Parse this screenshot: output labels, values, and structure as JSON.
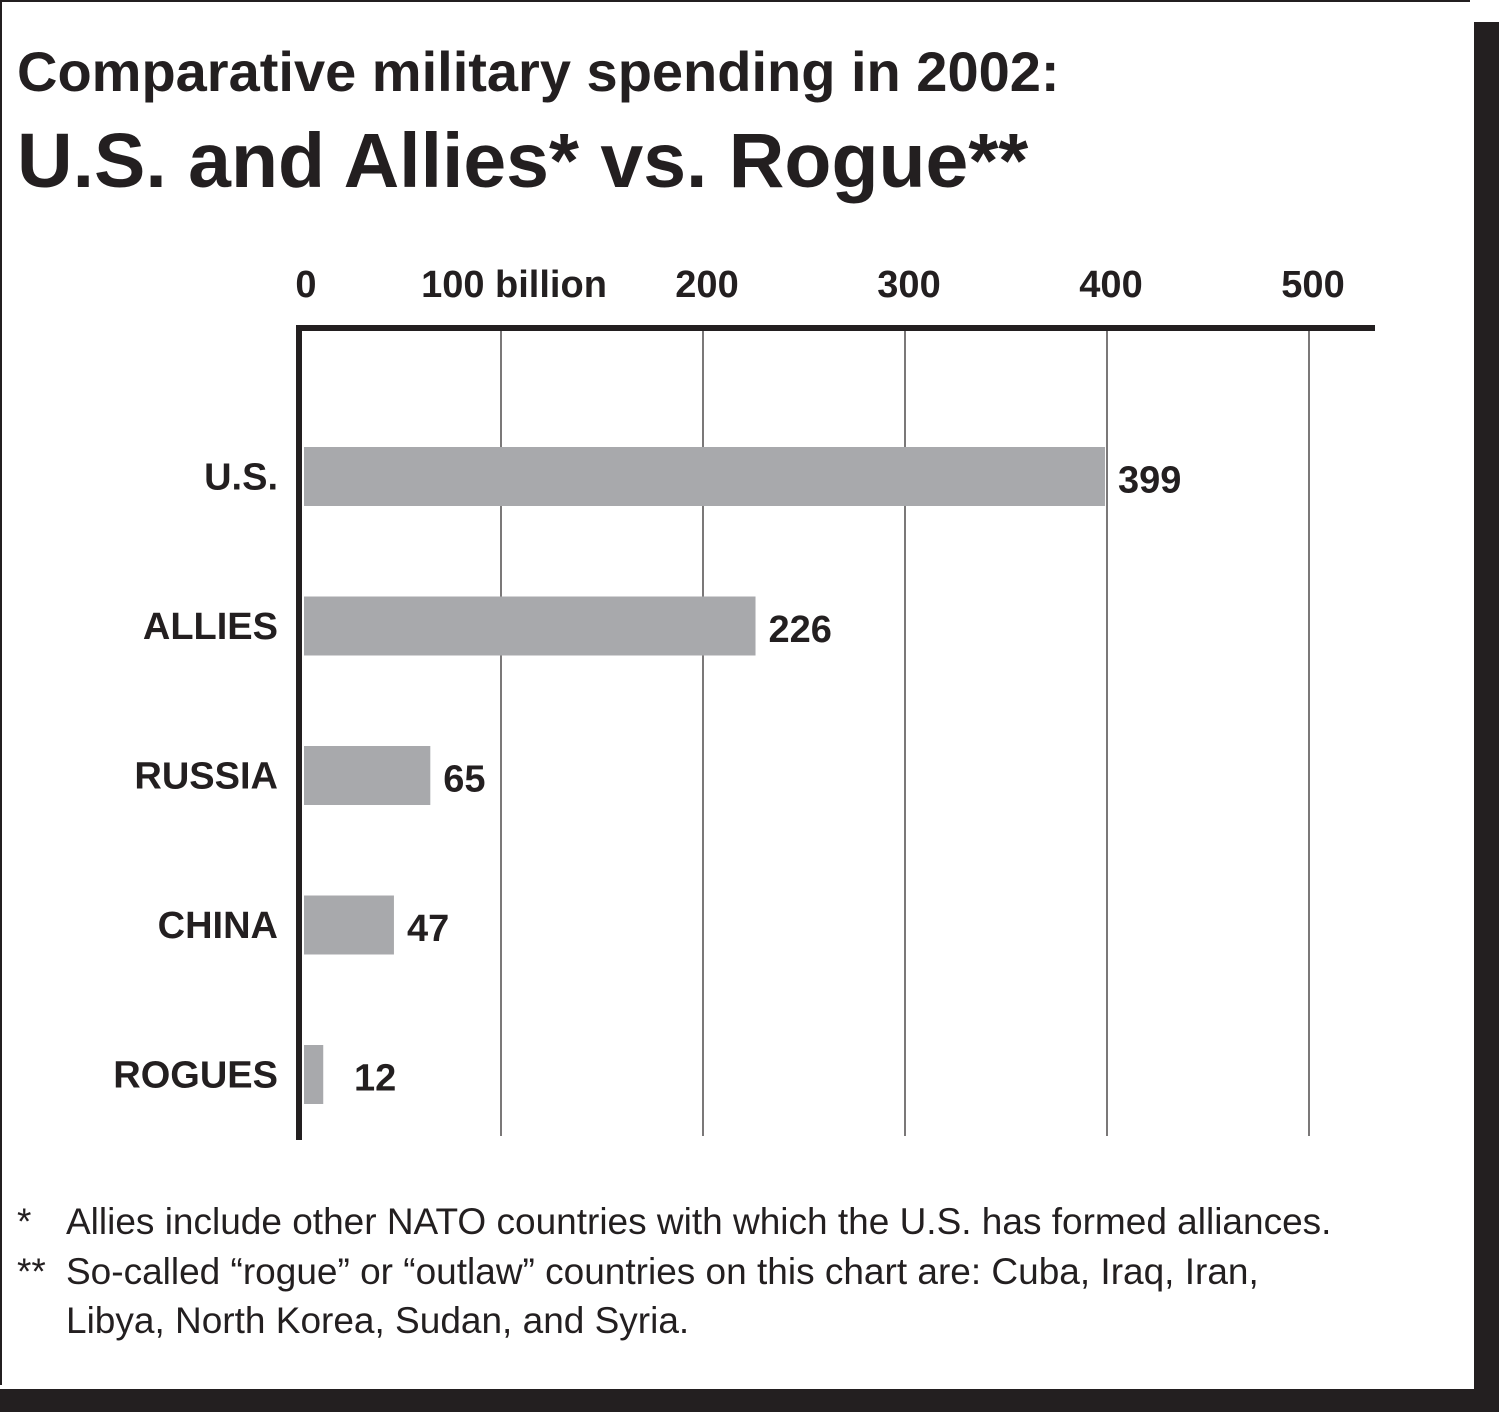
{
  "chart_data": {
    "type": "bar",
    "orientation": "horizontal",
    "title": "Comparative military spending in 2002:",
    "subtitle": "U.S. and Allies* vs. Rogue**",
    "categories": [
      "U.S.",
      "ALLIES",
      "RUSSIA",
      "CHINA",
      "ROGUES"
    ],
    "values": [
      399,
      226,
      65,
      47,
      12
    ],
    "value_labels": [
      "399",
      "226",
      "65",
      "47",
      "12"
    ],
    "xlim": [
      0,
      530
    ],
    "x_ticks": [
      0,
      100,
      200,
      300,
      400,
      500
    ],
    "x_tick_labels": [
      "0",
      "100 billion",
      "200",
      "300",
      "400",
      "500"
    ],
    "axis_position": "top",
    "grid": true,
    "bar_color": "#a8a9ac",
    "axis_color": "#231f20"
  },
  "footnotes": [
    {
      "mark": "*",
      "lines": [
        "Allies include other NATO countries with which the U.S. has formed alliances."
      ]
    },
    {
      "mark": "**",
      "lines": [
        "So-called “rogue”  or “outlaw” countries on this chart are: Cuba, Iraq, Iran,",
        "Libya, North Korea, Sudan, and Syria."
      ]
    }
  ]
}
